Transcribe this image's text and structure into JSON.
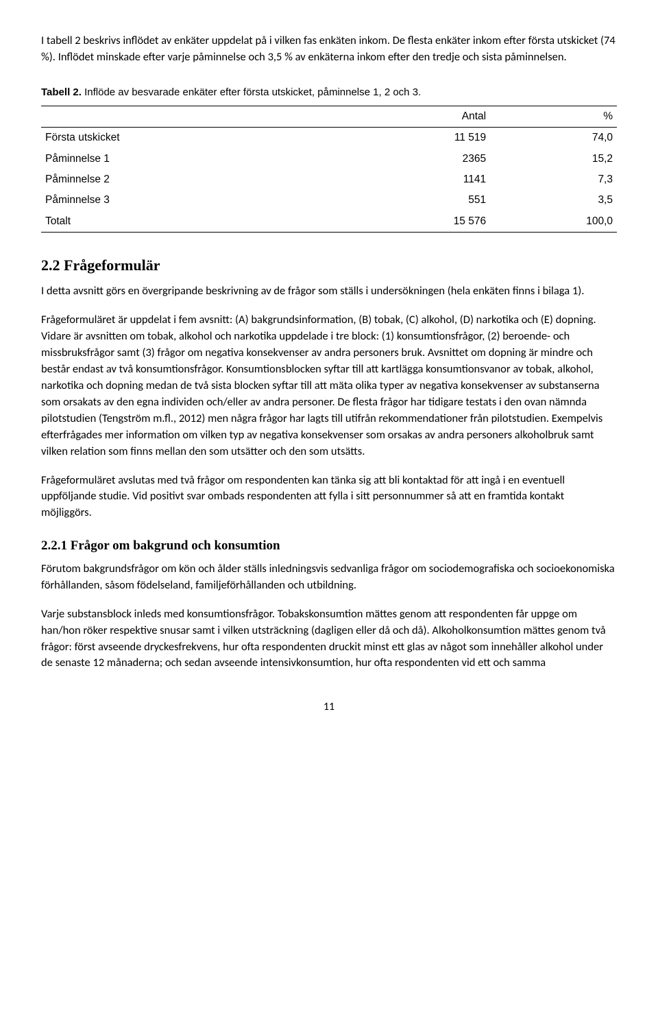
{
  "intro_para": "I tabell 2 beskrivs inflödet av enkäter uppdelat på i vilken fas enkäten inkom. De flesta enkäter inkom efter första utskicket (74 %). Inflödet minskade efter varje påminnelse och 3,5 % av enkäterna inkom efter den tredje och sista påminnelsen.",
  "table": {
    "caption_bold": "Tabell 2.",
    "caption_rest": " Inflöde av besvarade enkäter efter första utskicket, påminnelse 1, 2 och 3.",
    "col_antal": "Antal",
    "col_pct": "%",
    "rows": [
      {
        "label": "Första utskicket",
        "antal": "11 519",
        "pct": "74,0"
      },
      {
        "label": "Påminnelse 1",
        "antal": "2365",
        "pct": "15,2"
      },
      {
        "label": "Påminnelse 2",
        "antal": "1141",
        "pct": "7,3"
      },
      {
        "label": "Påminnelse 3",
        "antal": "551",
        "pct": "3,5"
      },
      {
        "label": "Totalt",
        "antal": "15 576",
        "pct": "100,0"
      }
    ]
  },
  "sec22_title": "2.2 Frågeformulär",
  "sec22_p1": "I detta avsnitt görs en övergripande beskrivning av de frågor som ställs i undersökningen (hela enkäten finns i bilaga 1).",
  "sec22_p2": "Frågeformuläret är uppdelat i fem avsnitt: (A) bakgrundsinformation, (B) tobak, (C) alkohol, (D) narkotika och (E) dopning. Vidare är avsnitten om tobak, alkohol och narkotika uppdelade i tre block: (1) konsumtionsfrågor, (2) beroende- och missbruksfrågor samt (3) frågor om negativa konsekvenser av andra personers bruk. Avsnittet om dopning är mindre och består endast av två konsumtionsfrågor. Konsumtionsblocken syftar till att kartlägga konsumtionsvanor av tobak, alkohol, narkotika och dopning medan de två sista blocken syftar till att mäta olika typer av negativa konsekvenser av substanserna som orsakats av den egna individen och/eller av andra personer. De flesta frågor har tidigare testats i den ovan nämnda pilotstudien (Tengström m.fl., 2012) men några frågor har lagts till utifrån rekommendationer från pilotstudien. Exempelvis efterfrågades mer information om vilken typ av negativa konsekvenser som orsakas av andra personers alkoholbruk samt vilken relation som finns mellan den som utsätter och den som utsätts.",
  "sec22_p3": "Frågeformuläret avslutas med två frågor om respondenten kan tänka sig att bli kontaktad för att ingå i en eventuell uppföljande studie. Vid positivt svar ombads respondenten att fylla i sitt personnummer så att en framtida kontakt möjliggörs.",
  "sec221_title": "2.2.1 Frågor om bakgrund och konsumtion",
  "sec221_p1": "Förutom bakgrundsfrågor om kön och ålder ställs inledningsvis sedvanliga frågor om sociodemografiska och socioekonomiska förhållanden, såsom födelseland, familjeförhållanden och utbildning.",
  "sec221_p2": "Varje substansblock inleds med konsumtionsfrågor. Tobakskonsumtion mättes genom att respondenten får uppge om han/hon röker respektive snusar samt i vilken utsträckning (dagligen eller då och då). Alkoholkonsumtion mättes genom två frågor: först avseende dryckesfrekvens, hur ofta respondenten druckit minst ett glas av något som innehåller alkohol under de senaste 12 månaderna; och sedan avseende intensivkonsumtion, hur ofta respondenten vid ett och samma",
  "page_number": "11"
}
